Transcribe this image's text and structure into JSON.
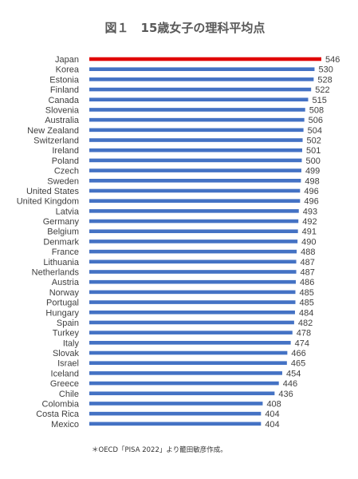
{
  "chart_data": {
    "type": "bar",
    "orientation": "horizontal",
    "title": "図１　15歳女子の理科平均点",
    "source_note": "＊OECD「PISA 2022」より籠田敏彦作成。",
    "categories": [
      "Japan",
      "Korea",
      "Estonia",
      "Finland",
      "Canada",
      "Slovenia",
      "Australia",
      "New Zealand",
      "Switzerland",
      "Ireland",
      "Poland",
      "Czech",
      "Sweden",
      "United States",
      "United Kingdom",
      "Latvia",
      "Germany",
      "Belgium",
      "Denmark",
      "France",
      "Lithuania",
      "Netherlands",
      "Austria",
      "Norway",
      "Portugal",
      "Hungary",
      "Spain",
      "Turkey",
      "Italy",
      "Slovak",
      "Israel",
      "Iceland",
      "Greece",
      "Chile",
      "Colombia",
      "Costa Rica",
      "Mexico"
    ],
    "values": [
      546,
      530,
      528,
      522,
      515,
      508,
      506,
      504,
      502,
      501,
      500,
      499,
      498,
      496,
      496,
      493,
      492,
      491,
      490,
      488,
      487,
      487,
      486,
      485,
      485,
      484,
      482,
      478,
      474,
      466,
      465,
      454,
      446,
      436,
      408,
      404,
      404
    ],
    "highlight_index": 0,
    "colors": {
      "bar": "#4472C4",
      "highlight": "#E00000"
    },
    "xlim": [
      0,
      546
    ],
    "grid": false,
    "legend": "none"
  }
}
